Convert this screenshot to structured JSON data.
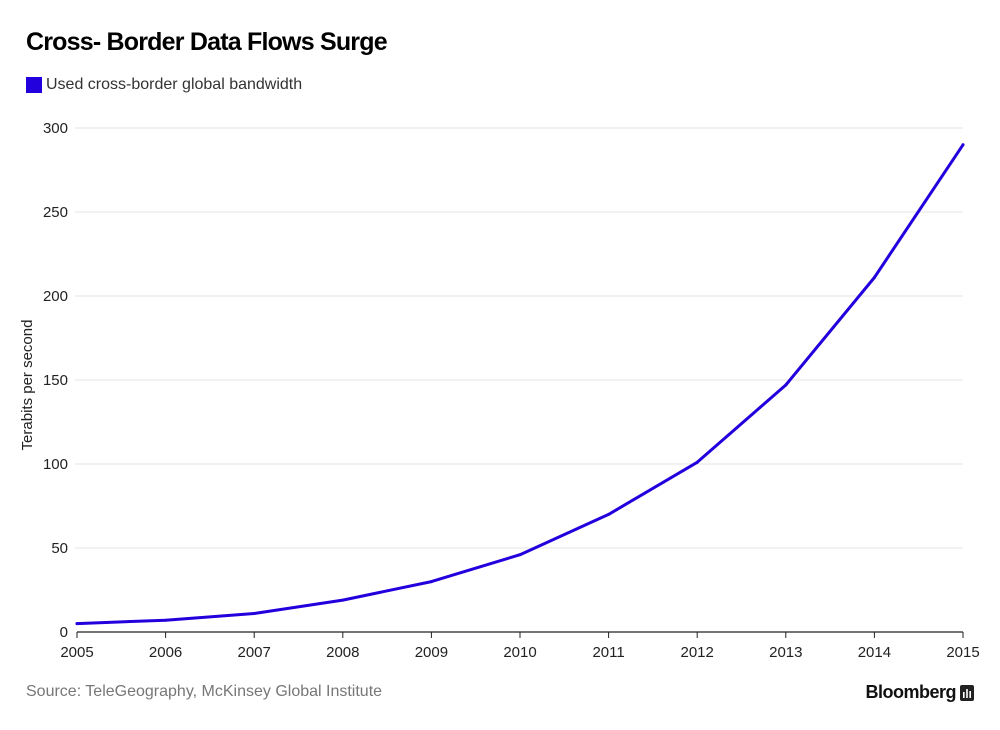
{
  "header": {
    "title": "Cross- Border Data Flows Surge"
  },
  "legend": {
    "label": "Used cross-border global bandwidth"
  },
  "footer": {
    "source": "Source: TeleGeography, McKinsey Global Institute",
    "brand": "Bloomberg"
  },
  "icons": {
    "brand_icon": "chart-bars-icon"
  },
  "colors": {
    "series": "#2200dd",
    "grid": "#e6e6e6",
    "axis": "#222222"
  },
  "chart_data": {
    "type": "line",
    "title": "Cross- Border Data Flows Surge",
    "xlabel": "",
    "ylabel": "Terabits per second",
    "x": [
      "2005",
      "2006",
      "2007",
      "2008",
      "2009",
      "2010",
      "2011",
      "2012",
      "2013",
      "2014",
      "2015"
    ],
    "series": [
      {
        "name": "Used cross-border global bandwidth",
        "values": [
          5,
          7,
          11,
          19,
          30,
          46,
          70,
          101,
          147,
          211,
          290
        ]
      }
    ],
    "ylim": [
      0,
      300
    ],
    "yticks": [
      0,
      50,
      100,
      150,
      200,
      250,
      300
    ],
    "grid": true,
    "legend_position": "top-left"
  }
}
